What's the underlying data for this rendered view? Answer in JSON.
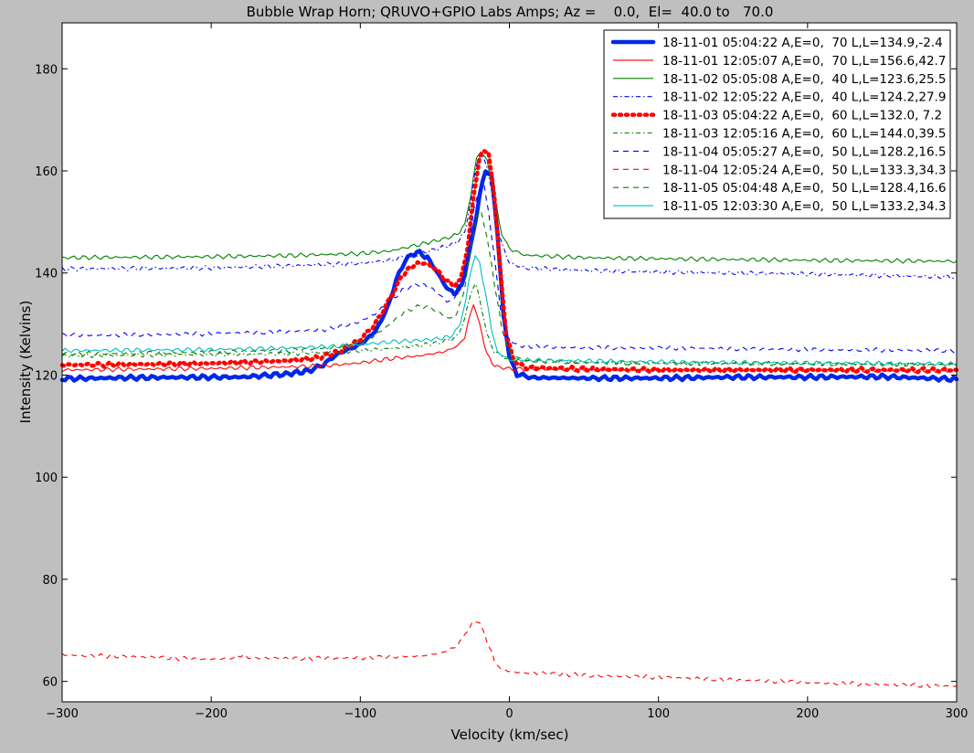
{
  "chart_data": {
    "type": "line",
    "title": "Bubble Wrap Horn; QRUVO+GPIO Labs Amps; Az =    0.0,  El=  40.0 to   70.0",
    "xlabel": "Velocity (km/sec)",
    "ylabel": "Intensity (Kelvins)",
    "xlim": [
      -300,
      300
    ],
    "ylim": [
      56,
      189
    ],
    "xticks": [
      -300,
      -200,
      -100,
      0,
      100,
      200,
      300
    ],
    "xtick_labels": [
      "−300",
      "−200",
      "−100",
      "0",
      "100",
      "200",
      "300"
    ],
    "yticks": [
      60,
      80,
      100,
      120,
      140,
      160,
      180
    ],
    "ytick_labels": [
      "60",
      "80",
      "100",
      "120",
      "140",
      "160",
      "180"
    ],
    "grid": false,
    "legend_position": "top-right",
    "series": [
      {
        "name": "18-11-01 05:04:22 A,E=0,  70 L,L=134.9,-2.4",
        "color": "#0028e8",
        "style": "solid-thick",
        "points": [
          [
            -300,
            119.3
          ],
          [
            -250,
            119.5
          ],
          [
            -200,
            119.6
          ],
          [
            -180,
            119.6
          ],
          [
            -150,
            120.2
          ],
          [
            -135,
            120.8
          ],
          [
            -125,
            122.0
          ],
          [
            -115,
            124.2
          ],
          [
            -100,
            126.0
          ],
          [
            -90,
            128.5
          ],
          [
            -82,
            133.0
          ],
          [
            -76,
            138.5
          ],
          [
            -70,
            142.5
          ],
          [
            -62,
            144.2
          ],
          [
            -55,
            143.0
          ],
          [
            -48,
            140.0
          ],
          [
            -42,
            137.0
          ],
          [
            -37,
            136.0
          ],
          [
            -32,
            137.5
          ],
          [
            -26,
            145.0
          ],
          [
            -20,
            155.0
          ],
          [
            -16,
            160.2
          ],
          [
            -12,
            159.0
          ],
          [
            -8,
            148.0
          ],
          [
            -4,
            132.0
          ],
          [
            0,
            123.5
          ],
          [
            5,
            120.2
          ],
          [
            15,
            119.5
          ],
          [
            50,
            119.4
          ],
          [
            100,
            119.4
          ],
          [
            150,
            119.6
          ],
          [
            200,
            119.6
          ],
          [
            250,
            119.7
          ],
          [
            300,
            119.2
          ]
        ]
      },
      {
        "name": "18-11-01 12:05:07 A,E=0,  70 L,L=156.6,42.7",
        "color": "#ff0000",
        "style": "solid",
        "points": [
          [
            -300,
            121.0
          ],
          [
            -200,
            121.3
          ],
          [
            -150,
            121.6
          ],
          [
            -120,
            121.9
          ],
          [
            -100,
            122.4
          ],
          [
            -80,
            123.2
          ],
          [
            -60,
            123.8
          ],
          [
            -45,
            124.5
          ],
          [
            -35,
            125.6
          ],
          [
            -30,
            127.5
          ],
          [
            -26,
            132.0
          ],
          [
            -24,
            134.0
          ],
          [
            -20,
            130.0
          ],
          [
            -15,
            124.0
          ],
          [
            -10,
            121.8
          ],
          [
            0,
            121.2
          ],
          [
            50,
            121.0
          ],
          [
            100,
            121.0
          ],
          [
            200,
            121.0
          ],
          [
            300,
            120.8
          ]
        ]
      },
      {
        "name": "18-11-02 05:05:08 A,E=0,  40 L,L=123.6,25.5",
        "color": "#008000",
        "style": "solid",
        "points": [
          [
            -300,
            143.0
          ],
          [
            -200,
            143.2
          ],
          [
            -150,
            143.4
          ],
          [
            -100,
            143.8
          ],
          [
            -80,
            144.3
          ],
          [
            -60,
            145.6
          ],
          [
            -45,
            146.6
          ],
          [
            -35,
            147.5
          ],
          [
            -30,
            149.5
          ],
          [
            -26,
            155.0
          ],
          [
            -22,
            162.5
          ],
          [
            -19,
            164.0
          ],
          [
            -15,
            162.0
          ],
          [
            -10,
            155.0
          ],
          [
            -5,
            147.5
          ],
          [
            0,
            144.8
          ],
          [
            10,
            143.5
          ],
          [
            50,
            143.0
          ],
          [
            100,
            142.8
          ],
          [
            200,
            142.5
          ],
          [
            300,
            142.3
          ]
        ]
      },
      {
        "name": "18-11-02 12:05:22 A,E=0,  40 L,L=124.2,27.9",
        "color": "#0000ff",
        "style": "dashdot",
        "points": [
          [
            -300,
            140.8
          ],
          [
            -200,
            141.0
          ],
          [
            -150,
            141.4
          ],
          [
            -100,
            141.9
          ],
          [
            -80,
            142.5
          ],
          [
            -60,
            143.8
          ],
          [
            -45,
            145.0
          ],
          [
            -35,
            146.0
          ],
          [
            -30,
            148.0
          ],
          [
            -26,
            154.0
          ],
          [
            -22,
            161.5
          ],
          [
            -19,
            163.5
          ],
          [
            -15,
            161.0
          ],
          [
            -10,
            153.0
          ],
          [
            -5,
            145.5
          ],
          [
            0,
            142.0
          ],
          [
            10,
            141.0
          ],
          [
            50,
            140.5
          ],
          [
            100,
            140.2
          ],
          [
            200,
            139.8
          ],
          [
            300,
            139.2
          ]
        ]
      },
      {
        "name": "18-11-03 05:04:22 A,E=0,  60 L,L=132.0, 7.2",
        "color": "#ff0000",
        "style": "dotted-thick",
        "points": [
          [
            -300,
            122.0
          ],
          [
            -250,
            122.1
          ],
          [
            -200,
            122.3
          ],
          [
            -150,
            122.8
          ],
          [
            -130,
            123.3
          ],
          [
            -115,
            124.5
          ],
          [
            -100,
            127.0
          ],
          [
            -90,
            130.0
          ],
          [
            -80,
            135.0
          ],
          [
            -72,
            139.5
          ],
          [
            -65,
            141.5
          ],
          [
            -58,
            142.0
          ],
          [
            -50,
            141.0
          ],
          [
            -44,
            139.0
          ],
          [
            -38,
            137.5
          ],
          [
            -33,
            138.5
          ],
          [
            -28,
            145.0
          ],
          [
            -24,
            155.0
          ],
          [
            -20,
            162.5
          ],
          [
            -17,
            164.2
          ],
          [
            -14,
            163.5
          ],
          [
            -10,
            155.0
          ],
          [
            -6,
            140.0
          ],
          [
            -2,
            128.0
          ],
          [
            3,
            122.8
          ],
          [
            10,
            121.5
          ],
          [
            50,
            121.2
          ],
          [
            100,
            121.0
          ],
          [
            150,
            121.0
          ],
          [
            200,
            121.0
          ],
          [
            300,
            121.0
          ]
        ]
      },
      {
        "name": "18-11-03 12:05:16 A,E=0,  60 L,L=144.0,39.5",
        "color": "#008000",
        "style": "dashdot",
        "points": [
          [
            -300,
            123.8
          ],
          [
            -200,
            124.0
          ],
          [
            -150,
            124.2
          ],
          [
            -120,
            124.5
          ],
          [
            -100,
            124.8
          ],
          [
            -80,
            125.2
          ],
          [
            -60,
            125.8
          ],
          [
            -45,
            126.5
          ],
          [
            -35,
            127.5
          ],
          [
            -30,
            131.0
          ],
          [
            -26,
            136.0
          ],
          [
            -23,
            138.0
          ],
          [
            -20,
            135.0
          ],
          [
            -15,
            128.0
          ],
          [
            -10,
            124.5
          ],
          [
            0,
            123.0
          ],
          [
            50,
            122.5
          ],
          [
            100,
            122.3
          ],
          [
            200,
            122.2
          ],
          [
            300,
            122.0
          ]
        ]
      },
      {
        "name": "18-11-04 05:05:27 A,E=0,  50 L,L=128.2,16.5",
        "color": "#0000ff",
        "style": "dashed",
        "points": [
          [
            -300,
            127.8
          ],
          [
            -250,
            127.9
          ],
          [
            -200,
            128.1
          ],
          [
            -150,
            128.5
          ],
          [
            -120,
            129.0
          ],
          [
            -100,
            130.5
          ],
          [
            -90,
            132.0
          ],
          [
            -80,
            134.5
          ],
          [
            -70,
            137.0
          ],
          [
            -62,
            137.8
          ],
          [
            -55,
            137.5
          ],
          [
            -48,
            136.0
          ],
          [
            -42,
            134.5
          ],
          [
            -37,
            134.8
          ],
          [
            -32,
            137.5
          ],
          [
            -28,
            144.0
          ],
          [
            -24,
            152.0
          ],
          [
            -20,
            156.5
          ],
          [
            -17,
            157.0
          ],
          [
            -14,
            152.0
          ],
          [
            -10,
            143.0
          ],
          [
            -6,
            133.0
          ],
          [
            -2,
            127.5
          ],
          [
            5,
            125.8
          ],
          [
            20,
            125.5
          ],
          [
            50,
            125.4
          ],
          [
            100,
            125.3
          ],
          [
            200,
            125.0
          ],
          [
            300,
            124.8
          ]
        ]
      },
      {
        "name": "18-11-04 12:05:24 A,E=0,  50 L,L=133.3,34.3",
        "color": "#ff0000",
        "style": "dashed",
        "points": [
          [
            -300,
            65.2
          ],
          [
            -250,
            64.8
          ],
          [
            -200,
            64.3
          ],
          [
            -185,
            64.6
          ],
          [
            -180,
            65.2
          ],
          [
            -175,
            64.6
          ],
          [
            -150,
            64.5
          ],
          [
            -100,
            64.6
          ],
          [
            -80,
            64.8
          ],
          [
            -60,
            65.0
          ],
          [
            -45,
            65.6
          ],
          [
            -35,
            67.0
          ],
          [
            -28,
            70.0
          ],
          [
            -23,
            72.0
          ],
          [
            -20,
            71.5
          ],
          [
            -15,
            68.0
          ],
          [
            -10,
            64.0
          ],
          [
            -5,
            62.2
          ],
          [
            5,
            61.8
          ],
          [
            50,
            61.2
          ],
          [
            100,
            60.8
          ],
          [
            150,
            60.3
          ],
          [
            200,
            59.8
          ],
          [
            250,
            59.4
          ],
          [
            300,
            59.0
          ]
        ]
      },
      {
        "name": "18-11-05 05:04:48 A,E=0,  50 L,L=128.4,16.6",
        "color": "#008000",
        "style": "dashed",
        "points": [
          [
            -300,
            124.2
          ],
          [
            -250,
            124.3
          ],
          [
            -200,
            124.5
          ],
          [
            -150,
            124.8
          ],
          [
            -120,
            125.3
          ],
          [
            -100,
            126.5
          ],
          [
            -90,
            127.8
          ],
          [
            -80,
            130.0
          ],
          [
            -70,
            132.5
          ],
          [
            -60,
            133.5
          ],
          [
            -52,
            133.2
          ],
          [
            -46,
            132.0
          ],
          [
            -40,
            131.0
          ],
          [
            -35,
            132.0
          ],
          [
            -30,
            137.0
          ],
          [
            -26,
            144.5
          ],
          [
            -22,
            151.0
          ],
          [
            -19,
            152.0
          ],
          [
            -15,
            147.0
          ],
          [
            -10,
            138.0
          ],
          [
            -5,
            129.0
          ],
          [
            0,
            124.5
          ],
          [
            10,
            122.8
          ],
          [
            50,
            122.5
          ],
          [
            100,
            122.3
          ],
          [
            200,
            122.3
          ],
          [
            300,
            122.0
          ]
        ]
      },
      {
        "name": "18-11-05 12:03:30 A,E=0,  50 L,L=133.2,34.3",
        "color": "#00bfbf",
        "style": "solid",
        "points": [
          [
            -300,
            124.8
          ],
          [
            -250,
            124.9
          ],
          [
            -200,
            125.0
          ],
          [
            -150,
            125.3
          ],
          [
            -120,
            125.6
          ],
          [
            -100,
            126.0
          ],
          [
            -80,
            126.5
          ],
          [
            -60,
            126.8
          ],
          [
            -45,
            127.2
          ],
          [
            -38,
            127.8
          ],
          [
            -33,
            130.0
          ],
          [
            -29,
            135.0
          ],
          [
            -26,
            140.5
          ],
          [
            -23,
            143.2
          ],
          [
            -20,
            142.0
          ],
          [
            -16,
            136.0
          ],
          [
            -12,
            129.0
          ],
          [
            -8,
            124.5
          ],
          [
            0,
            123.0
          ],
          [
            50,
            122.8
          ],
          [
            100,
            122.6
          ],
          [
            200,
            122.4
          ],
          [
            300,
            122.2
          ]
        ]
      }
    ]
  }
}
